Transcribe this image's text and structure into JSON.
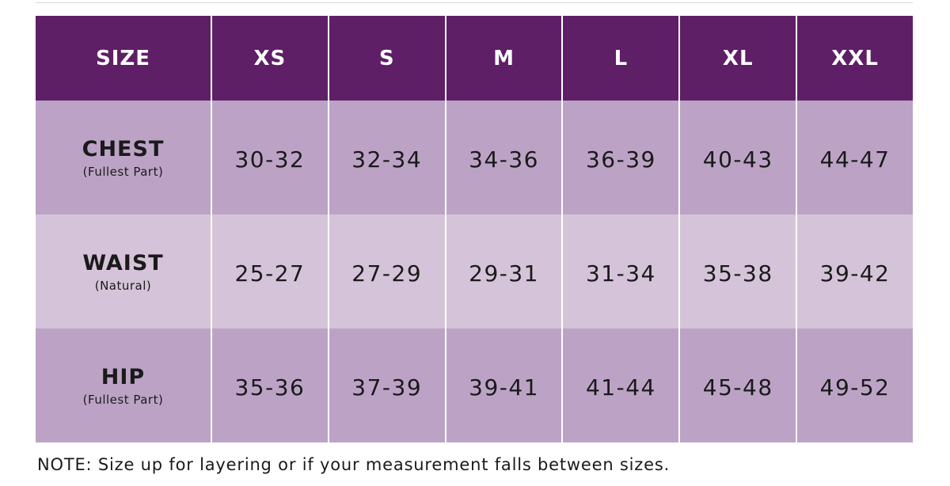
{
  "table": {
    "header": [
      "SIZE",
      "XS",
      "S",
      "M",
      "L",
      "XL",
      "XXL"
    ],
    "rows": [
      {
        "label": "CHEST",
        "sublabel": "(Fullest Part)",
        "values": [
          "30-32",
          "32-34",
          "34-36",
          "36-39",
          "40-43",
          "44-47"
        ]
      },
      {
        "label": "WAIST",
        "sublabel": "(Natural)",
        "values": [
          "25-27",
          "27-29",
          "29-31",
          "31-34",
          "35-38",
          "39-42"
        ]
      },
      {
        "label": "HIP",
        "sublabel": "(Fullest Part)",
        "values": [
          "35-36",
          "37-39",
          "39-41",
          "41-44",
          "45-48",
          "49-52"
        ]
      }
    ]
  },
  "note": "NOTE: Size up for layering or if your measurement falls between sizes."
}
